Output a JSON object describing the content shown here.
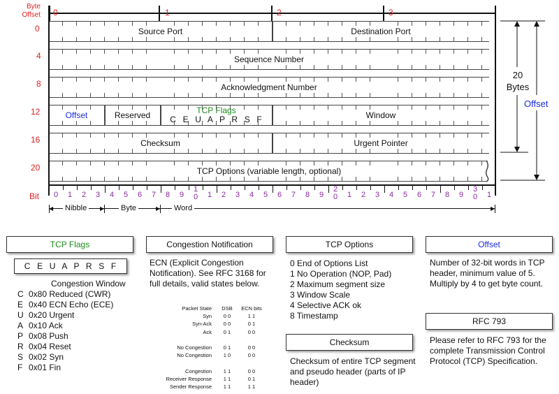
{
  "header": {
    "byte_offset_label": "Byte\nOffset",
    "byte_cols": [
      "0",
      "1",
      "2",
      "3"
    ],
    "row_offsets": [
      "0",
      "4",
      "8",
      "12",
      "16",
      "20"
    ],
    "bit_label": "Bit",
    "bit_numbers": [
      "0",
      "1",
      "2",
      "3",
      "4",
      "5",
      "6",
      "7",
      "8",
      "9",
      "1\n0",
      "1",
      "2",
      "3",
      "4",
      "5",
      "6",
      "7",
      "8",
      "9",
      "2\n0",
      "1",
      "2",
      "3",
      "4",
      "5",
      "6",
      "7",
      "8",
      "9",
      "3\n0",
      "1"
    ]
  },
  "fields": {
    "source_port": "Source Port",
    "destination_port": "Destination Port",
    "sequence_number": "Sequence Number",
    "ack_number": "Acknowledgment Number",
    "offset": "Offset",
    "reserved": "Reserved",
    "tcp_flags_title": "TCP Flags",
    "tcp_flags_letters": "C  E  U  A  P  R  S  F",
    "window": "Window",
    "checksum": "Checksum",
    "urgent_pointer": "Urgent Pointer",
    "tcp_options": "TCP Options (variable length, optional)"
  },
  "right_annotations": {
    "twenty_bytes": "20\nBytes",
    "offset": "Offset"
  },
  "units": {
    "nibble": "Nibble",
    "byte": "Byte",
    "word": "Word"
  },
  "sections": {
    "tcp_flags": {
      "title": "TCP Flags",
      "letters": "C  E  U  A  P  R  S  F",
      "subtitle": "Congestion Window",
      "items": [
        {
          "letter": "C",
          "text": "0x80 Reduced (CWR)"
        },
        {
          "letter": "E",
          "text": "0x40 ECN Echo (ECE)"
        },
        {
          "letter": "U",
          "text": "0x20 Urgent"
        },
        {
          "letter": "A",
          "text": "0x10 Ack"
        },
        {
          "letter": "P",
          "text": "0x08 Push"
        },
        {
          "letter": "R",
          "text": "0x04 Reset"
        },
        {
          "letter": "S",
          "text": "0x02 Syn"
        },
        {
          "letter": "F",
          "text": "0x01 Fin"
        }
      ]
    },
    "congestion": {
      "title": "Congestion Notification",
      "body": "ECN (Explicit Congestion Notification).  See RFC 3168 for full details, valid states below.",
      "table_headers": [
        "Packet State",
        "DSB",
        "ECN bits"
      ],
      "rows": [
        [
          "Syn",
          "0 0",
          "1 1"
        ],
        [
          "Syn-Ack",
          "0 0",
          "0 1"
        ],
        [
          "Ack",
          "0 1",
          "0 0"
        ],
        [
          "",
          "",
          ""
        ],
        [
          "No Congestion",
          "0 1",
          "0 0"
        ],
        [
          "No Congestion",
          "1 0",
          "0 0"
        ],
        [
          "",
          "",
          ""
        ],
        [
          "Congestion",
          "1 1",
          "0 0"
        ],
        [
          "Receiver Response",
          "1 1",
          "0 1"
        ],
        [
          "Sender Response",
          "1 1",
          "1 1"
        ]
      ]
    },
    "tcp_options": {
      "title": "TCP Options",
      "items": [
        "0 End of Options List",
        "1 No Operation (NOP, Pad)",
        "2 Maximum segment size",
        "3 Window Scale",
        "4 Selective ACK ok",
        "8 Timestamp"
      ]
    },
    "checksum": {
      "title": "Checksum",
      "body": "Checksum of entire TCP segment and pseudo header (parts of IP header)"
    },
    "offset": {
      "title": "Offset",
      "body": "Number of 32-bit words in TCP header, minimum value of 5.  Multiply by 4 to get byte count."
    },
    "rfc": {
      "title": "RFC 793",
      "body": "Please refer to RFC 793 for the complete Transmission Control Protocol (TCP) Specification."
    }
  }
}
